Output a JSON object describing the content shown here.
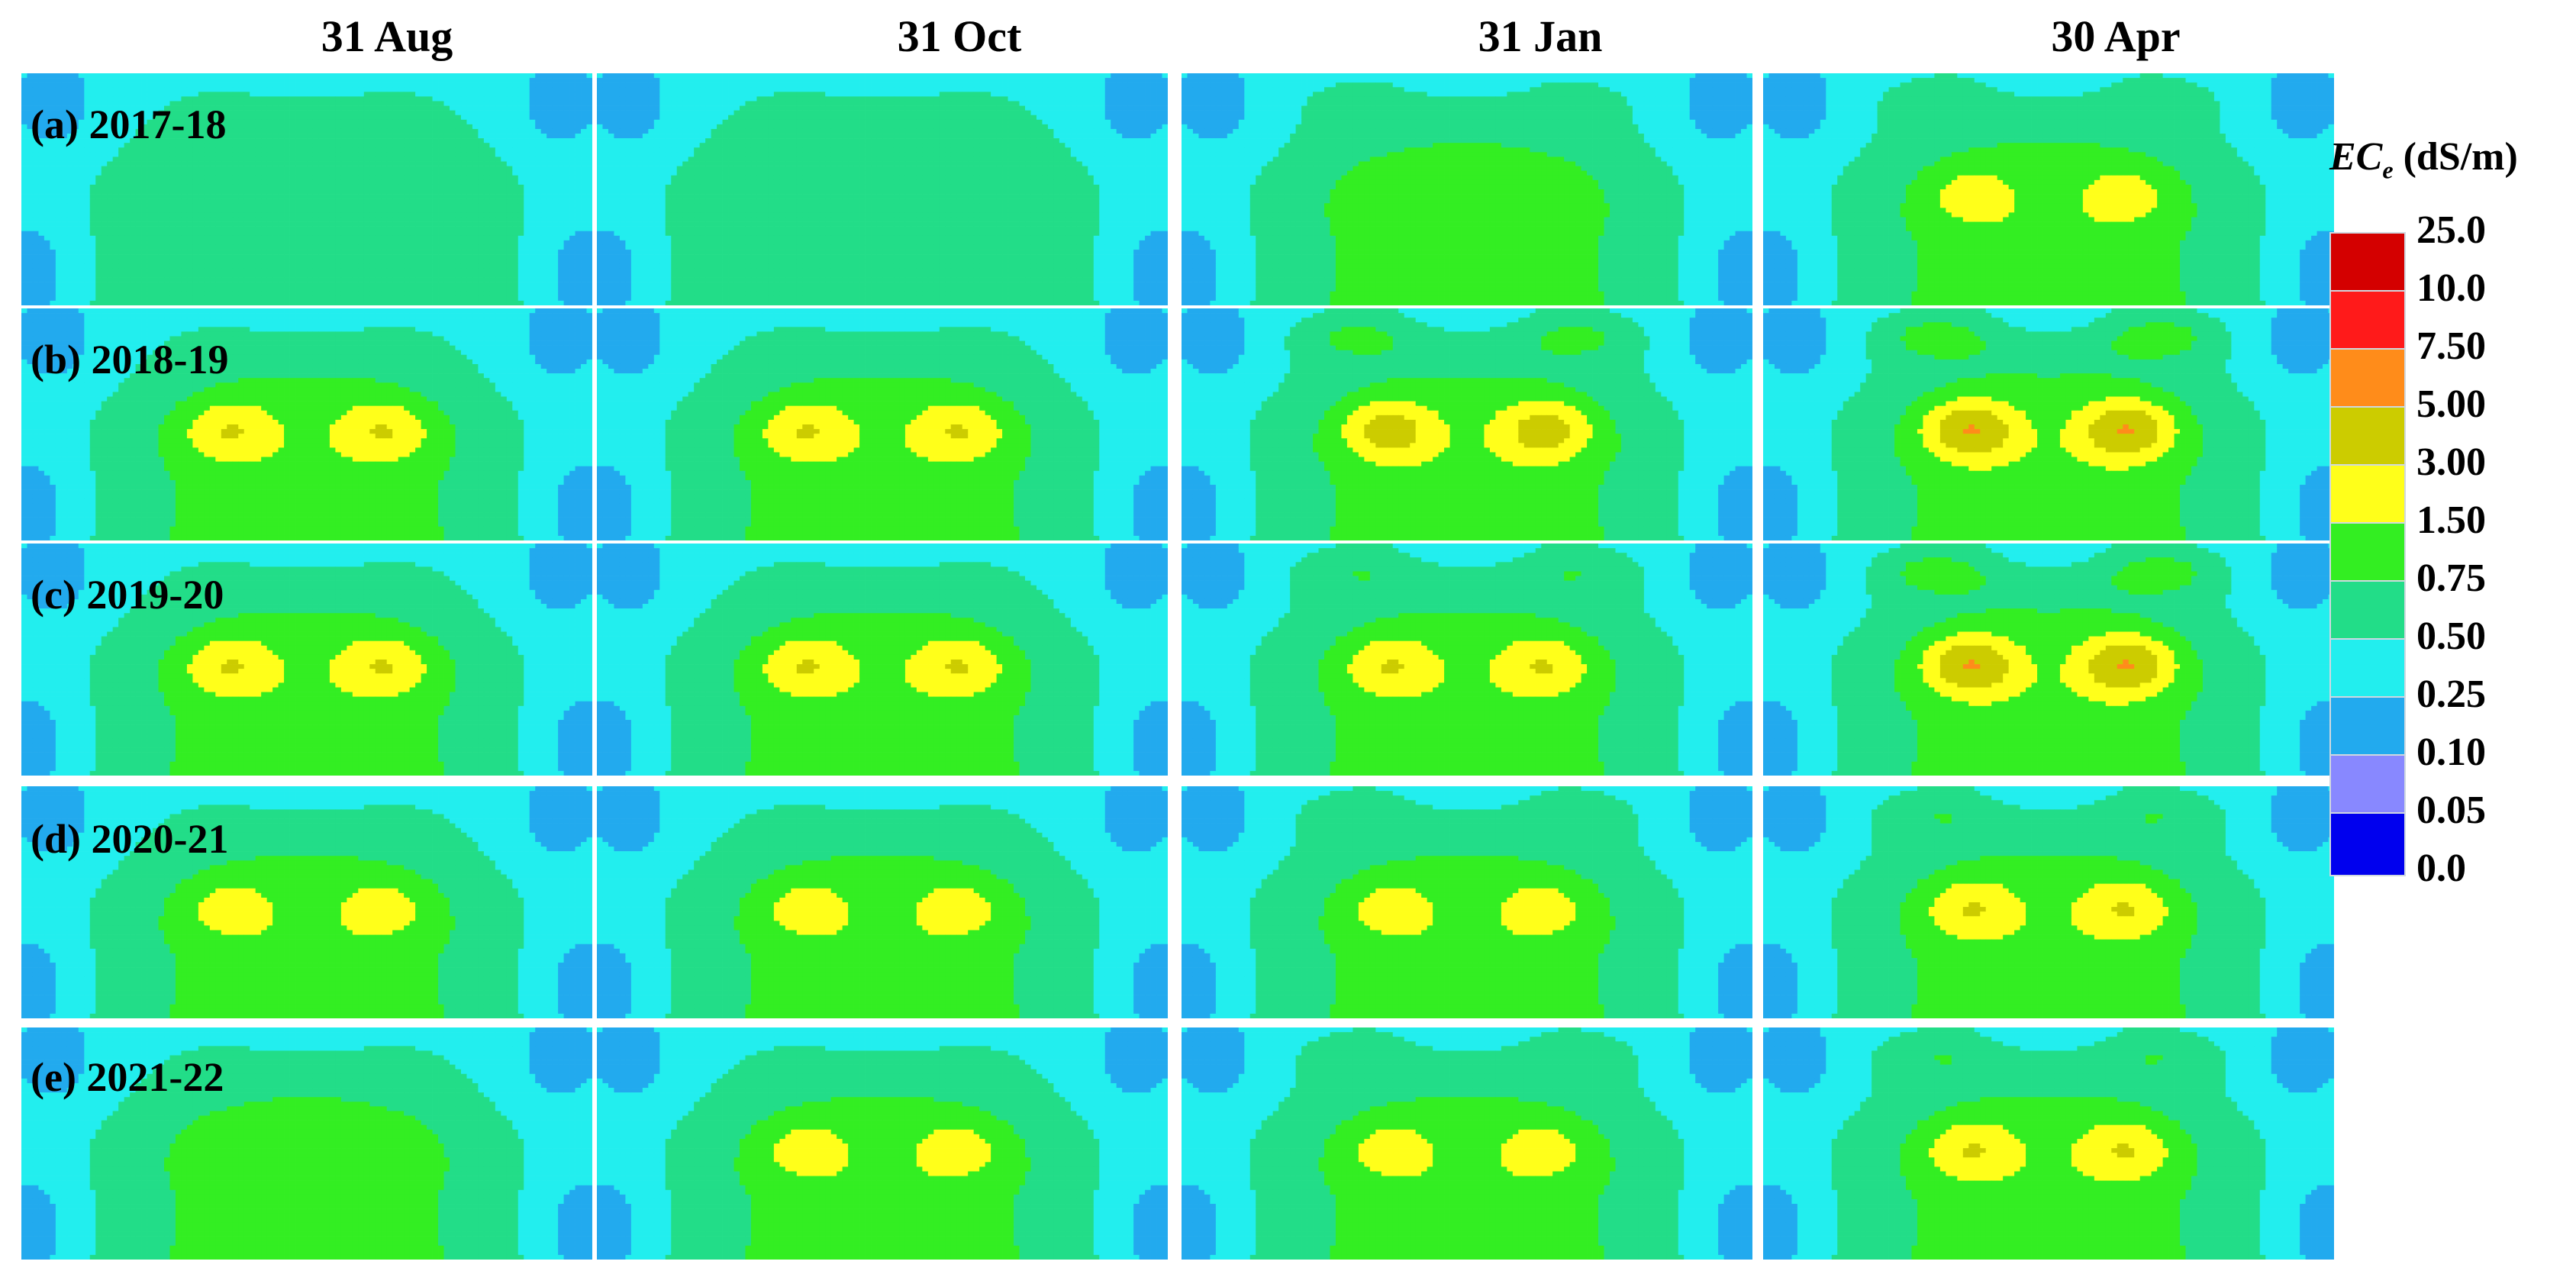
{
  "chart_data": {
    "type": "heatmap",
    "columns": [
      "31 Aug",
      "31 Oct",
      "31 Jan",
      "30 Apr"
    ],
    "rows": [
      "(a) 2017-18",
      "(b) 2018-19",
      "(c) 2019-20",
      "(d) 2020-21",
      "(e) 2021-22"
    ],
    "legend": {
      "title_var": "EC",
      "title_sub": "e",
      "title_unit": " (dS/m)",
      "ticks": [
        "25.0",
        "10.0",
        "7.50",
        "5.00",
        "3.00",
        "1.50",
        "0.75",
        "0.50",
        "0.25",
        "0.10",
        "0.05",
        "0.0"
      ],
      "colors": [
        "#d40000",
        "#ff1a1a",
        "#ff8c1a",
        "#cccc00",
        "#ffff1a",
        "#33ee22",
        "#22dd88",
        "#22eeee",
        "#22aaee",
        "#8888ff",
        "#0000ee"
      ]
    },
    "max_class": [
      [
        4,
        4,
        5,
        6
      ],
      [
        7,
        7,
        8,
        9
      ],
      [
        7,
        7,
        7,
        9
      ],
      [
        6,
        6,
        6,
        7
      ],
      [
        5,
        6,
        6,
        7
      ]
    ]
  }
}
